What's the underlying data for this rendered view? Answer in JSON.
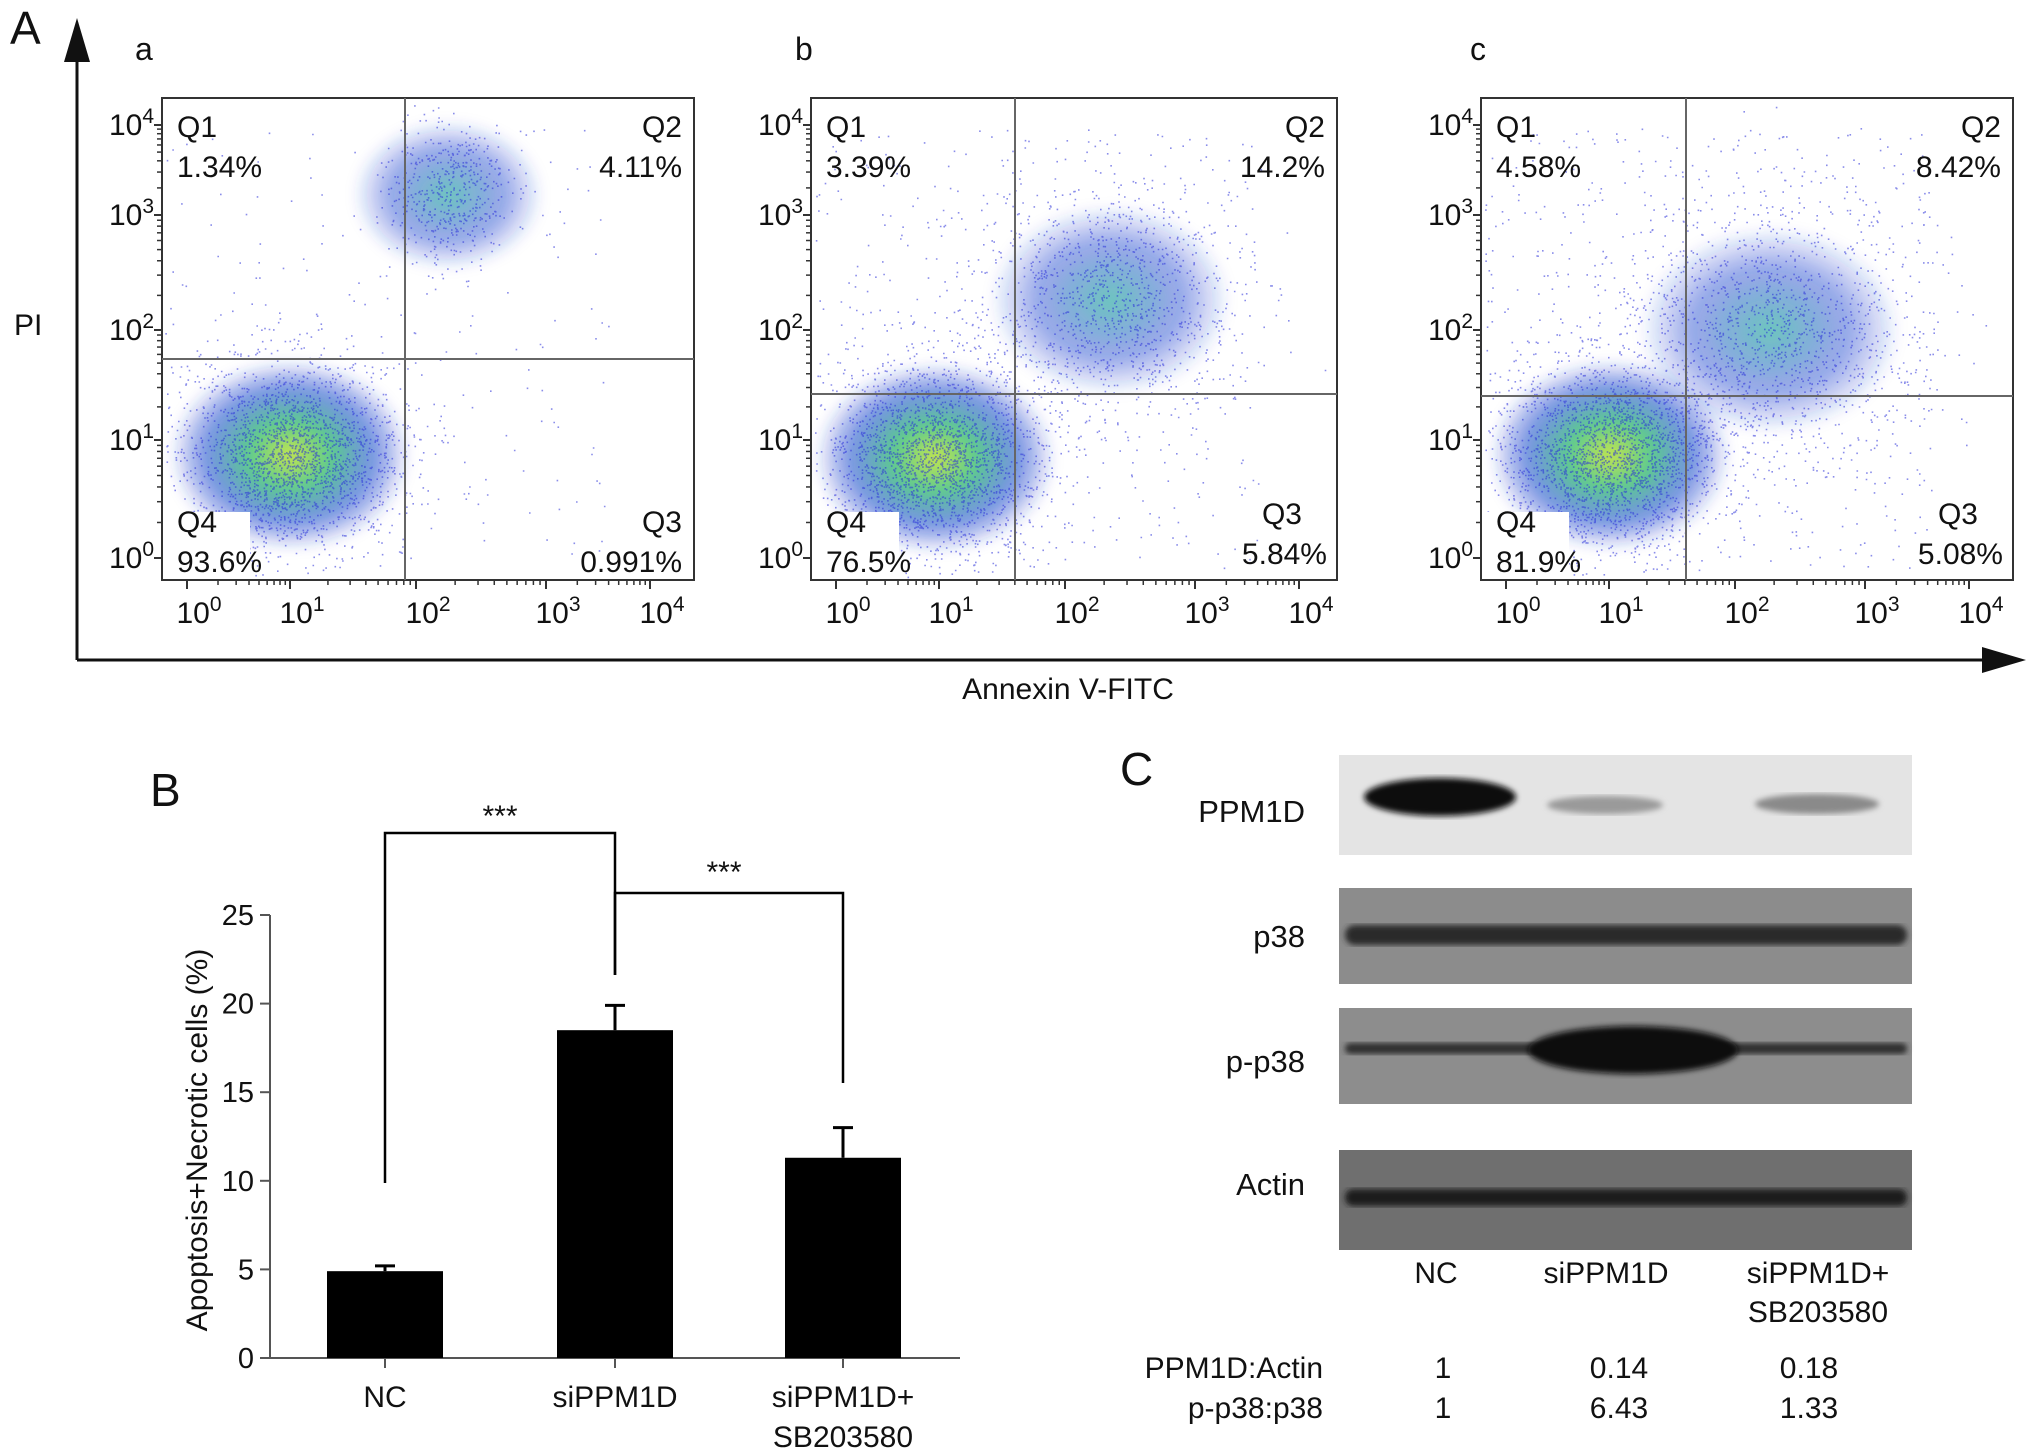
{
  "panelA": {
    "letter": "A",
    "y_axis_title": "PI",
    "x_axis_title": "Annexin V-FITC",
    "tick_base": "10",
    "tick_exponents": [
      "0",
      "1",
      "2",
      "3",
      "4"
    ],
    "plots": [
      {
        "letter": "a",
        "quadrants": {
          "Q1": {
            "label": "Q1",
            "value": "1.34%"
          },
          "Q2": {
            "label": "Q2",
            "value": "4.11%"
          },
          "Q3": {
            "label": "Q3",
            "value": "0.991%"
          },
          "Q4": {
            "label": "Q4",
            "value": "93.6%"
          }
        }
      },
      {
        "letter": "b",
        "quadrants": {
          "Q1": {
            "label": "Q1",
            "value": "3.39%"
          },
          "Q2": {
            "label": "Q2",
            "value": "14.2%"
          },
          "Q3": {
            "label": "Q3",
            "value": "5.84%"
          },
          "Q4": {
            "label": "Q4",
            "value": "76.5%"
          }
        }
      },
      {
        "letter": "c",
        "quadrants": {
          "Q1": {
            "label": "Q1",
            "value": "4.58%"
          },
          "Q2": {
            "label": "Q2",
            "value": "8.42%"
          },
          "Q3": {
            "label": "Q3",
            "value": "5.08%"
          },
          "Q4": {
            "label": "Q4",
            "value": "81.9%"
          }
        }
      }
    ]
  },
  "panelB": {
    "letter": "B",
    "significance": [
      "***",
      "***"
    ]
  },
  "chart_data": {
    "type": "bar",
    "ylabel": "Apoptosis+Necrotic cells (%)",
    "ylim": [
      0,
      25
    ],
    "yticks": [
      0,
      5,
      10,
      15,
      20,
      25
    ],
    "categories": [
      "NC",
      "siPPM1D",
      "siPPM1D+\nSB203580"
    ],
    "values": [
      4.9,
      18.5,
      11.3
    ],
    "errors": [
      0.3,
      1.4,
      1.7
    ]
  },
  "panelC": {
    "letter": "C",
    "bands": [
      "PPM1D",
      "p38",
      "p-p38",
      "Actin"
    ],
    "lanes": [
      "NC",
      "siPPM1D",
      "siPPM1D+",
      "SB203580"
    ],
    "ratios": [
      {
        "label": "PPM1D:Actin",
        "values": [
          "1",
          "0.14",
          "0.18"
        ]
      },
      {
        "label": "p-p38:p38",
        "values": [
          "1",
          "6.43",
          "1.33"
        ]
      }
    ]
  }
}
